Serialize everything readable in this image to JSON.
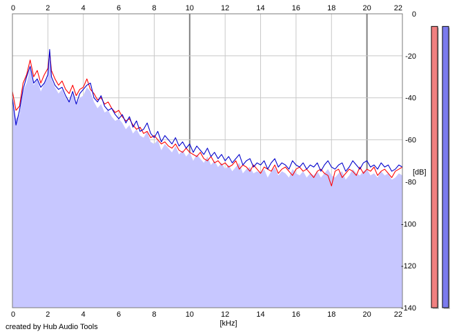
{
  "chart_data": {
    "type": "line",
    "xlabel": "[kHz]",
    "ylabel": "[dB]",
    "xlim": [
      0,
      22
    ],
    "ylim": [
      -140,
      0
    ],
    "x_ticks": [
      0,
      2,
      4,
      6,
      8,
      10,
      12,
      14,
      16,
      18,
      20,
      22
    ],
    "y_ticks": [
      0,
      -20,
      -40,
      -60,
      -80,
      -100,
      -120,
      -140
    ],
    "grid": true,
    "area_fill_color": "#c7c7ff",
    "series": [
      {
        "color": "#ff0000",
        "x": [
          0,
          0.2,
          0.4,
          0.6,
          0.8,
          1.0,
          1.2,
          1.4,
          1.6,
          1.8,
          2.0,
          2.1,
          2.2,
          2.4,
          2.6,
          2.8,
          3.0,
          3.2,
          3.4,
          3.6,
          3.8,
          4.0,
          4.2,
          4.4,
          4.6,
          4.8,
          5.0,
          5.2,
          5.4,
          5.6,
          5.8,
          6.0,
          6.2,
          6.4,
          6.6,
          6.8,
          7.0,
          7.2,
          7.4,
          7.6,
          7.8,
          8.0,
          8.2,
          8.4,
          8.6,
          8.8,
          9.0,
          9.2,
          9.4,
          9.6,
          9.8,
          10.0,
          10.2,
          10.4,
          10.6,
          10.8,
          11.0,
          11.2,
          11.4,
          11.6,
          11.8,
          12.0,
          12.2,
          12.4,
          12.6,
          12.8,
          13.0,
          13.2,
          13.4,
          13.6,
          13.8,
          14.0,
          14.2,
          14.4,
          14.6,
          14.8,
          15.0,
          15.2,
          15.4,
          15.6,
          15.8,
          16.0,
          16.2,
          16.4,
          16.6,
          16.8,
          17.0,
          17.2,
          17.4,
          17.6,
          17.8,
          18.0,
          18.2,
          18.4,
          18.6,
          18.8,
          19.0,
          19.2,
          19.4,
          19.6,
          19.8,
          20.0,
          20.2,
          20.4,
          20.6,
          20.8,
          21.0,
          21.2,
          21.4,
          21.6,
          21.8,
          22.0
        ],
        "values": [
          -37,
          -46,
          -44,
          -33,
          -29,
          -22,
          -30,
          -27,
          -33,
          -29,
          -26,
          -18,
          -27,
          -31,
          -34,
          -32,
          -36,
          -38,
          -34,
          -39,
          -36,
          -35,
          -31,
          -36,
          -38,
          -41,
          -40,
          -43,
          -42,
          -45,
          -47,
          -46,
          -49,
          -51,
          -50,
          -53,
          -55,
          -54,
          -57,
          -56,
          -59,
          -58,
          -60,
          -62,
          -61,
          -63,
          -64,
          -62,
          -65,
          -66,
          -64,
          -66,
          -67,
          -68,
          -66,
          -69,
          -70,
          -68,
          -71,
          -70,
          -72,
          -71,
          -73,
          -72,
          -70,
          -74,
          -72,
          -73,
          -75,
          -72,
          -74,
          -76,
          -73,
          -74,
          -75,
          -72,
          -76,
          -74,
          -73,
          -75,
          -77,
          -74,
          -73,
          -75,
          -74,
          -76,
          -78,
          -75,
          -74,
          -76,
          -77,
          -82,
          -75,
          -74,
          -78,
          -76,
          -74,
          -75,
          -77,
          -73,
          -76,
          -74,
          -75,
          -73,
          -77,
          -75,
          -74,
          -76,
          -78,
          -75,
          -74,
          -73
        ]
      },
      {
        "color": "#0000cc",
        "x": [
          0,
          0.2,
          0.4,
          0.6,
          0.8,
          1.0,
          1.2,
          1.4,
          1.6,
          1.8,
          2.0,
          2.1,
          2.2,
          2.4,
          2.6,
          2.8,
          3.0,
          3.2,
          3.4,
          3.6,
          3.8,
          4.0,
          4.2,
          4.4,
          4.6,
          4.8,
          5.0,
          5.2,
          5.4,
          5.6,
          5.8,
          6.0,
          6.2,
          6.4,
          6.6,
          6.8,
          7.0,
          7.2,
          7.4,
          7.6,
          7.8,
          8.0,
          8.2,
          8.4,
          8.6,
          8.8,
          9.0,
          9.2,
          9.4,
          9.6,
          9.8,
          10.0,
          10.2,
          10.4,
          10.6,
          10.8,
          11.0,
          11.2,
          11.4,
          11.6,
          11.8,
          12.0,
          12.2,
          12.4,
          12.6,
          12.8,
          13.0,
          13.2,
          13.4,
          13.6,
          13.8,
          14.0,
          14.2,
          14.4,
          14.6,
          14.8,
          15.0,
          15.2,
          15.4,
          15.6,
          15.8,
          16.0,
          16.2,
          16.4,
          16.6,
          16.8,
          17.0,
          17.2,
          17.4,
          17.6,
          17.8,
          18.0,
          18.2,
          18.4,
          18.6,
          18.8,
          19.0,
          19.2,
          19.4,
          19.6,
          19.8,
          20.0,
          20.2,
          20.4,
          20.6,
          20.8,
          21.0,
          21.2,
          21.4,
          21.6,
          21.8,
          22.0
        ],
        "values": [
          -40,
          -53,
          -46,
          -36,
          -30,
          -25,
          -33,
          -31,
          -35,
          -33,
          -29,
          -17,
          -30,
          -34,
          -36,
          -35,
          -39,
          -42,
          -37,
          -43,
          -38,
          -36,
          -34,
          -33,
          -40,
          -42,
          -39,
          -44,
          -46,
          -45,
          -48,
          -50,
          -48,
          -52,
          -49,
          -54,
          -51,
          -56,
          -55,
          -52,
          -57,
          -59,
          -56,
          -61,
          -58,
          -60,
          -62,
          -59,
          -63,
          -61,
          -64,
          -62,
          -66,
          -63,
          -65,
          -67,
          -64,
          -68,
          -66,
          -69,
          -67,
          -70,
          -68,
          -71,
          -69,
          -67,
          -72,
          -70,
          -69,
          -73,
          -71,
          -72,
          -70,
          -74,
          -71,
          -69,
          -73,
          -71,
          -72,
          -74,
          -70,
          -72,
          -73,
          -71,
          -74,
          -72,
          -73,
          -71,
          -75,
          -72,
          -70,
          -73,
          -74,
          -72,
          -71,
          -75,
          -73,
          -70,
          -72,
          -74,
          -71,
          -70,
          -73,
          -72,
          -74,
          -71,
          -73,
          -72,
          -75,
          -74,
          -72,
          -73
        ]
      }
    ],
    "level_meters": [
      {
        "color": "#f08080",
        "level": 0.98
      },
      {
        "color": "#7b7bee",
        "level": 0.98
      }
    ]
  },
  "footer": {
    "credit": "created by Hub Audio Tools"
  }
}
